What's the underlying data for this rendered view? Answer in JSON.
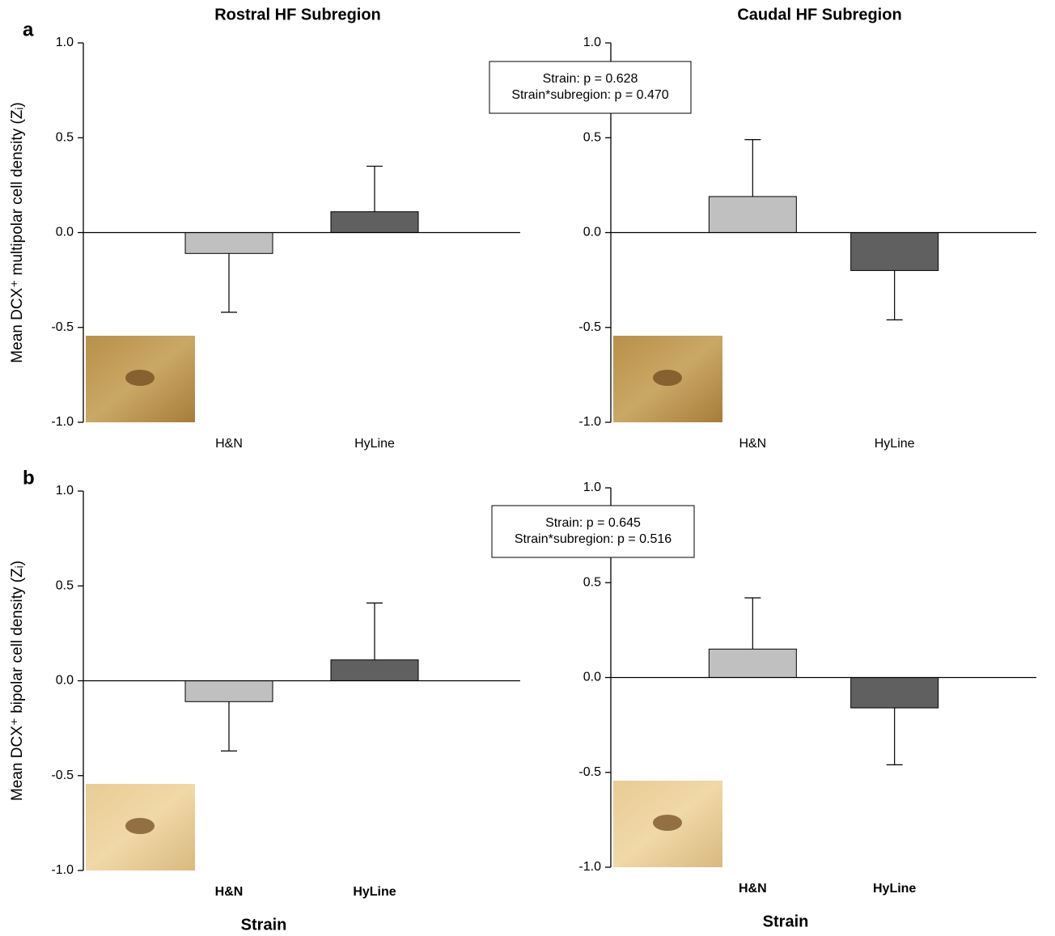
{
  "chart_data": [
    {
      "type": "bar",
      "title": "Rostral HF Subregion",
      "panel_label": "a",
      "y_label": "Mean DCX⁺ multipolar cell density (Zᵢ)",
      "categories": [
        "H&N",
        "HyLine"
      ],
      "values": [
        -0.11,
        0.11
      ],
      "errors": [
        0.31,
        0.24
      ],
      "colors": [
        "#c0c0c0",
        "#606060"
      ],
      "ylim": [
        -1,
        1
      ],
      "yticks": [
        {
          "value": 1,
          "label": "1.0"
        },
        0.5,
        {
          "value": 0,
          "label": "0.0"
        },
        -0.5,
        {
          "value": -1,
          "label": "-1.0"
        }
      ]
    },
    {
      "type": "bar",
      "title": "Caudal HF Subregion",
      "annotations": [
        "Strain: p = 0.628",
        "Strain*subregion: p = 0.470"
      ],
      "categories": [
        "H&N",
        "HyLine"
      ],
      "values": [
        0.19,
        -0.2
      ],
      "errors": [
        0.3,
        0.26
      ],
      "colors": [
        "#c0c0c0",
        "#606060"
      ],
      "ylim": [
        -1,
        1
      ],
      "yticks": [
        {
          "value": 1,
          "label": "1.0"
        },
        0.5,
        {
          "value": 0,
          "label": "0.0"
        },
        -0.5,
        {
          "value": -1,
          "label": "-1.0"
        }
      ]
    },
    {
      "type": "bar",
      "panel_label": "b",
      "y_label": "Mean DCX⁺ bipolar cell density (Zᵢ)",
      "x_label": "Strain",
      "categories": [
        "H&N",
        "HyLine"
      ],
      "values": [
        -0.11,
        0.11
      ],
      "errors": [
        0.26,
        0.3
      ],
      "colors": [
        "#c0c0c0",
        "#606060"
      ],
      "ylim": [
        -1,
        1
      ],
      "yticks": [
        {
          "value": 1,
          "label": "1.0"
        },
        0.5,
        {
          "value": 0,
          "label": "0.0"
        },
        -0.5,
        {
          "value": -1,
          "label": "-1.0"
        }
      ]
    },
    {
      "type": "bar",
      "x_label": "Strain",
      "annotations": [
        "Strain: p = 0.645",
        "Strain*subregion: p = 0.516"
      ],
      "categories": [
        "H&N",
        "HyLine"
      ],
      "values": [
        0.15,
        -0.16
      ],
      "errors": [
        0.27,
        0.3
      ],
      "colors": [
        "#c0c0c0",
        "#606060"
      ],
      "ylim": [
        -1,
        1
      ],
      "yticks": [
        {
          "value": 1,
          "label": "1.0"
        },
        0.5,
        {
          "value": 0,
          "label": "0.0"
        },
        -0.5,
        {
          "value": -1,
          "label": "-1.0"
        }
      ]
    }
  ]
}
